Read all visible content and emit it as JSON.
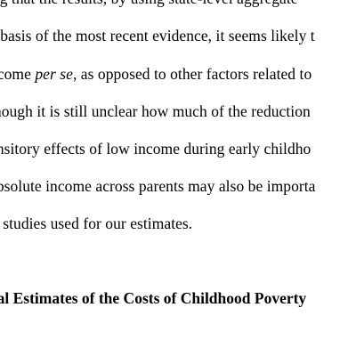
{
  "document": {
    "paragraph_lines": [
      "ing that the results, by using state-level aggregate",
      "e basis of the most recent evidence, it seems likely t",
      "ncome",
      "though it is still unclear how much of the reduction",
      "ansitory effects of low income during early childho",
      "absolute income across parents may also be importa",
      "e studies used for our estimates."
    ],
    "line2_italic": "per se",
    "line2_rest": ", as opposed to other factors related to",
    "section_heading": "ical Estimates of the Costs of Childhood Poverty"
  }
}
